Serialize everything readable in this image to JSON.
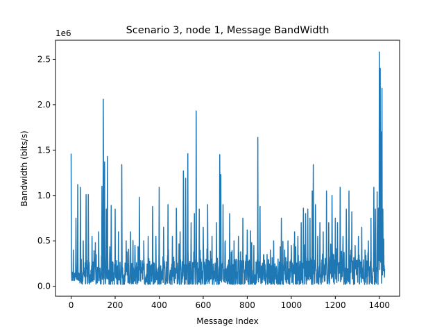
{
  "chart_data": {
    "type": "line",
    "title": "Scenario 3, node 1, Message BandWidth",
    "xlabel": "Message Index",
    "ylabel": "Bandwidth (bits/s)",
    "y_offset_label": "1e6",
    "xlim": [
      -71,
      1492
    ],
    "ylim": [
      -0.11,
      2.71
    ],
    "y_scale_factor": 1000000,
    "x_ticks": [
      0,
      200,
      400,
      600,
      800,
      1000,
      1200,
      1400
    ],
    "x_tick_labels": [
      "0",
      "200",
      "400",
      "600",
      "800",
      "1000",
      "1200",
      "1400"
    ],
    "y_ticks": [
      0.0,
      0.5,
      1.0,
      1.5,
      2.0,
      2.5
    ],
    "y_tick_labels": [
      "0.0",
      "0.5",
      "1.0",
      "1.5",
      "2.0",
      "2.5"
    ],
    "grid": false,
    "series_color": "#1f77b4",
    "peaks": [
      {
        "x": 0,
        "y": 1.46
      },
      {
        "x": 10,
        "y": 0.4
      },
      {
        "x": 22,
        "y": 0.75
      },
      {
        "x": 30,
        "y": 1.12
      },
      {
        "x": 42,
        "y": 1.09
      },
      {
        "x": 55,
        "y": 0.5
      },
      {
        "x": 68,
        "y": 1.01
      },
      {
        "x": 78,
        "y": 1.01
      },
      {
        "x": 95,
        "y": 0.55
      },
      {
        "x": 110,
        "y": 0.48
      },
      {
        "x": 125,
        "y": 0.6
      },
      {
        "x": 140,
        "y": 1.1
      },
      {
        "x": 146,
        "y": 2.06
      },
      {
        "x": 152,
        "y": 1.37
      },
      {
        "x": 160,
        "y": 0.85
      },
      {
        "x": 165,
        "y": 1.43
      },
      {
        "x": 182,
        "y": 0.89
      },
      {
        "x": 200,
        "y": 0.85
      },
      {
        "x": 215,
        "y": 0.6
      },
      {
        "x": 230,
        "y": 1.34
      },
      {
        "x": 250,
        "y": 0.5
      },
      {
        "x": 270,
        "y": 0.6
      },
      {
        "x": 290,
        "y": 0.45
      },
      {
        "x": 310,
        "y": 0.98
      },
      {
        "x": 330,
        "y": 0.5
      },
      {
        "x": 350,
        "y": 0.55
      },
      {
        "x": 370,
        "y": 0.88
      },
      {
        "x": 385,
        "y": 0.55
      },
      {
        "x": 400,
        "y": 1.09
      },
      {
        "x": 420,
        "y": 0.65
      },
      {
        "x": 440,
        "y": 0.9
      },
      {
        "x": 460,
        "y": 0.55
      },
      {
        "x": 478,
        "y": 0.86
      },
      {
        "x": 495,
        "y": 0.6
      },
      {
        "x": 510,
        "y": 1.27
      },
      {
        "x": 520,
        "y": 1.19
      },
      {
        "x": 530,
        "y": 1.46
      },
      {
        "x": 545,
        "y": 0.7
      },
      {
        "x": 560,
        "y": 0.8
      },
      {
        "x": 568,
        "y": 1.93
      },
      {
        "x": 582,
        "y": 0.85
      },
      {
        "x": 600,
        "y": 0.65
      },
      {
        "x": 620,
        "y": 0.9
      },
      {
        "x": 640,
        "y": 0.55
      },
      {
        "x": 660,
        "y": 0.7
      },
      {
        "x": 675,
        "y": 1.45
      },
      {
        "x": 680,
        "y": 1.23
      },
      {
        "x": 690,
        "y": 0.9
      },
      {
        "x": 700,
        "y": 0.5
      },
      {
        "x": 720,
        "y": 0.8
      },
      {
        "x": 740,
        "y": 0.5
      },
      {
        "x": 760,
        "y": 0.55
      },
      {
        "x": 780,
        "y": 0.75
      },
      {
        "x": 800,
        "y": 0.62
      },
      {
        "x": 815,
        "y": 0.61
      },
      {
        "x": 830,
        "y": 0.45
      },
      {
        "x": 848,
        "y": 1.64
      },
      {
        "x": 858,
        "y": 0.88
      },
      {
        "x": 875,
        "y": 0.35
      },
      {
        "x": 890,
        "y": 0.35
      },
      {
        "x": 905,
        "y": 0.4
      },
      {
        "x": 920,
        "y": 0.5
      },
      {
        "x": 940,
        "y": 0.3
      },
      {
        "x": 955,
        "y": 0.75
      },
      {
        "x": 970,
        "y": 0.4
      },
      {
        "x": 985,
        "y": 0.5
      },
      {
        "x": 1000,
        "y": 0.45
      },
      {
        "x": 1015,
        "y": 0.6
      },
      {
        "x": 1030,
        "y": 0.55
      },
      {
        "x": 1045,
        "y": 0.7
      },
      {
        "x": 1055,
        "y": 0.86
      },
      {
        "x": 1065,
        "y": 0.8
      },
      {
        "x": 1075,
        "y": 0.85
      },
      {
        "x": 1085,
        "y": 0.75
      },
      {
        "x": 1095,
        "y": 1.05
      },
      {
        "x": 1100,
        "y": 1.34
      },
      {
        "x": 1110,
        "y": 0.9
      },
      {
        "x": 1120,
        "y": 0.55
      },
      {
        "x": 1130,
        "y": 0.7
      },
      {
        "x": 1145,
        "y": 0.6
      },
      {
        "x": 1160,
        "y": 1.05
      },
      {
        "x": 1170,
        "y": 0.7
      },
      {
        "x": 1185,
        "y": 1.0
      },
      {
        "x": 1200,
        "y": 0.75
      },
      {
        "x": 1210,
        "y": 0.7
      },
      {
        "x": 1222,
        "y": 1.09
      },
      {
        "x": 1235,
        "y": 0.55
      },
      {
        "x": 1250,
        "y": 0.85
      },
      {
        "x": 1262,
        "y": 1.05
      },
      {
        "x": 1275,
        "y": 0.82
      },
      {
        "x": 1290,
        "y": 0.45
      },
      {
        "x": 1305,
        "y": 0.55
      },
      {
        "x": 1320,
        "y": 0.65
      },
      {
        "x": 1335,
        "y": 0.4
      },
      {
        "x": 1350,
        "y": 0.5
      },
      {
        "x": 1362,
        "y": 0.75
      },
      {
        "x": 1375,
        "y": 1.09
      },
      {
        "x": 1382,
        "y": 0.85
      },
      {
        "x": 1390,
        "y": 1.04
      },
      {
        "x": 1396,
        "y": 0.86
      },
      {
        "x": 1400,
        "y": 2.58
      },
      {
        "x": 1404,
        "y": 2.4
      },
      {
        "x": 1408,
        "y": 1.7
      },
      {
        "x": 1412,
        "y": 2.18
      },
      {
        "x": 1416,
        "y": 0.85
      },
      {
        "x": 1420,
        "y": 0.52
      }
    ],
    "baseline_range": [
      0.02,
      0.3
    ],
    "n_points": 1425
  }
}
